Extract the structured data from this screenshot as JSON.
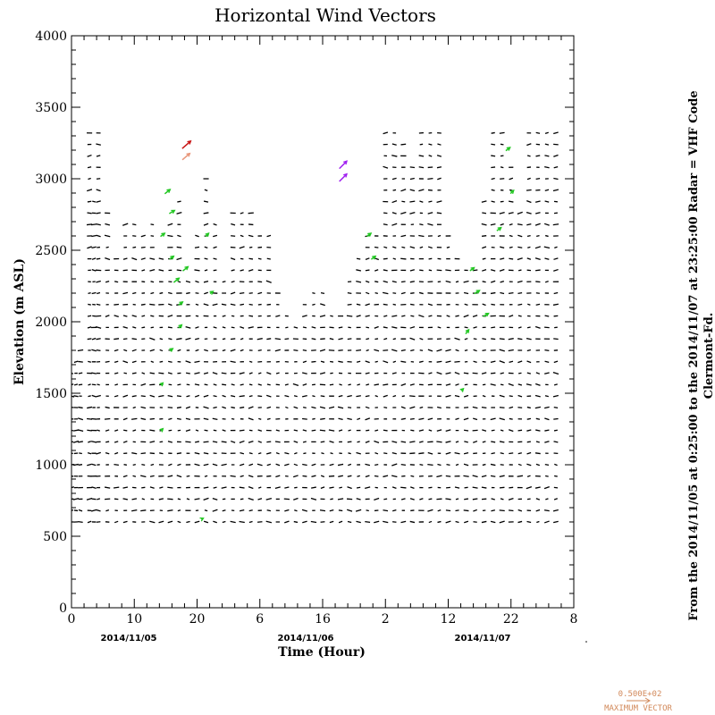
{
  "chart_data": {
    "type": "scatter",
    "subtype": "wind-vector field",
    "title": "Horizontal Wind Vectors",
    "xlabel": "Time (Hour)",
    "ylabel": "Elevation (m ASL)",
    "ylim": [
      0,
      4000
    ],
    "yticks": [
      "0",
      "500",
      "1000",
      "1500",
      "2000",
      "2500",
      "3000",
      "3500",
      "4000"
    ],
    "xticks": [
      "0",
      "10",
      "20",
      "6",
      "16",
      "2",
      "12",
      "22",
      "8"
    ],
    "date_labels": [
      "2014/11/05",
      "2014/11/06",
      "2014/11/07"
    ],
    "side_text_line1": "From the 2014/11/05 at  0:25:00 to the 2014/11/07 at 23:25:00 Radar = VHF Code",
    "side_text_line2": "Clermont-Fd.",
    "legend": {
      "value_label": "0.500E+02",
      "caption": "MAXIMUM VECTOR"
    },
    "colors": {
      "default_vector": "#000000",
      "green_vector": "#22c722",
      "purple_vector": "#a020f0",
      "red_vector": "#c81414",
      "salmon_vector": "#e8967a",
      "legend_color": "#d2895a"
    },
    "elevation_levels_m": [
      600,
      680,
      760,
      840,
      920,
      1000,
      1080,
      1160,
      1240,
      1320,
      1400,
      1480,
      1560,
      1640,
      1720,
      1800,
      1880,
      1960,
      2040,
      2120,
      2200,
      2280,
      2360,
      2440,
      2520,
      2600,
      2680,
      2760,
      2840,
      2920,
      3000,
      3080,
      3160,
      3240,
      3320
    ],
    "profiles": [
      {
        "t": 0,
        "top": 1700
      },
      {
        "t": 1,
        "top": 1750
      },
      {
        "t": 2,
        "top": 1800
      },
      {
        "t": 4,
        "top": 3340
      },
      {
        "t": 5,
        "top": 2900
      },
      {
        "t": 6,
        "top": 3340
      },
      {
        "t": 8,
        "top": 2800
      },
      {
        "t": 10,
        "top": 2500
      },
      {
        "t": 12,
        "top": 2700
      },
      {
        "t": 14,
        "top": 2700
      },
      {
        "t": 16,
        "top": 2600
      },
      {
        "t": 18,
        "top": 2700
      },
      {
        "t": 20,
        "top": 2500
      },
      {
        "t": 22,
        "top": 2750
      },
      {
        "t": 24,
        "top": 2850
      },
      {
        "t": 26,
        "top": 2300
      },
      {
        "t": 28,
        "top": 2600
      },
      {
        "t": 30,
        "top": 3000
      },
      {
        "t": 32,
        "top": 2700
      },
      {
        "t": 34,
        "top": 2300
      },
      {
        "t": 36,
        "top": 2800
      },
      {
        "t": 38,
        "top": 2800
      },
      {
        "t": 40,
        "top": 2800
      },
      {
        "t": 42,
        "top": 2600
      },
      {
        "t": 44,
        "top": 2600
      },
      {
        "t": 46,
        "top": 2200
      },
      {
        "t": 48,
        "top": 2100
      },
      {
        "t": 50,
        "top": 2000
      },
      {
        "t": 52,
        "top": 2150
      },
      {
        "t": 54,
        "top": 2200
      },
      {
        "t": 56,
        "top": 2200
      },
      {
        "t": 58,
        "top": 2050
      },
      {
        "t": 60,
        "top": 2100
      },
      {
        "t": 62,
        "top": 2300
      },
      {
        "t": 64,
        "top": 2500
      },
      {
        "t": 66,
        "top": 2600
      },
      {
        "t": 68,
        "top": 2600
      },
      {
        "t": 70,
        "top": 3340
      },
      {
        "t": 72,
        "top": 3340
      },
      {
        "t": 74,
        "top": 3300
      },
      {
        "t": 76,
        "top": 3100
      },
      {
        "t": 78,
        "top": 3340
      },
      {
        "t": 80,
        "top": 3340
      },
      {
        "t": 82,
        "top": 3340
      },
      {
        "t": 84,
        "top": 2600
      },
      {
        "t": 86,
        "top": 2500
      },
      {
        "t": 88,
        "top": 2400
      },
      {
        "t": 90,
        "top": 2400
      },
      {
        "t": 92,
        "top": 2900
      },
      {
        "t": 94,
        "top": 3340
      },
      {
        "t": 96,
        "top": 3340
      },
      {
        "t": 98,
        "top": 3100
      },
      {
        "t": 100,
        "top": 2800
      },
      {
        "t": 102,
        "top": 3340
      },
      {
        "t": 104,
        "top": 3340
      },
      {
        "t": 106,
        "top": 3340
      },
      {
        "t": 108,
        "top": 3340
      }
    ],
    "colored_vectors": [
      {
        "t": 20,
        "z": 2600,
        "u": 4,
        "v": 3,
        "color": "green"
      },
      {
        "t": 21,
        "z": 2900,
        "u": 5,
        "v": 4,
        "color": "green"
      },
      {
        "t": 22,
        "z": 2760,
        "u": 5,
        "v": 3,
        "color": "green"
      },
      {
        "t": 22,
        "z": 2440,
        "u": 4,
        "v": 3,
        "color": "green"
      },
      {
        "t": 23,
        "z": 2280,
        "u": 5,
        "v": 4,
        "color": "green"
      },
      {
        "t": 24,
        "z": 2120,
        "u": 4,
        "v": 3,
        "color": "green"
      },
      {
        "t": 24,
        "z": 1960,
        "u": 3,
        "v": 3,
        "color": "green"
      },
      {
        "t": 25,
        "z": 2360,
        "u": 5,
        "v": 4,
        "color": "green"
      },
      {
        "t": 22,
        "z": 1800,
        "u": 3,
        "v": 2,
        "color": "green"
      },
      {
        "t": 20,
        "z": 1560,
        "u": 2,
        "v": 2,
        "color": "green"
      },
      {
        "t": 20,
        "z": 1240,
        "u": 2,
        "v": 2,
        "color": "green"
      },
      {
        "t": 29,
        "z": 620,
        "u": 2,
        "v": 1,
        "color": "green"
      },
      {
        "t": 30,
        "z": 2600,
        "u": 3,
        "v": 3,
        "color": "green"
      },
      {
        "t": 31,
        "z": 2200,
        "u": 3,
        "v": 2,
        "color": "green"
      },
      {
        "t": 66,
        "z": 2600,
        "u": 4,
        "v": 3,
        "color": "green"
      },
      {
        "t": 67,
        "z": 2440,
        "u": 4,
        "v": 3,
        "color": "green"
      },
      {
        "t": 88,
        "z": 1920,
        "u": 3,
        "v": 4,
        "color": "green"
      },
      {
        "t": 89,
        "z": 2360,
        "u": 4,
        "v": 3,
        "color": "green"
      },
      {
        "t": 90,
        "z": 2200,
        "u": 5,
        "v": 3,
        "color": "green"
      },
      {
        "t": 92,
        "z": 2040,
        "u": 5,
        "v": 3,
        "color": "green"
      },
      {
        "t": 95,
        "z": 2640,
        "u": 4,
        "v": 3,
        "color": "green"
      },
      {
        "t": 97,
        "z": 3200,
        "u": 4,
        "v": 3,
        "color": "green"
      },
      {
        "t": 98,
        "z": 2900,
        "u": 3,
        "v": 3,
        "color": "green"
      },
      {
        "t": 87,
        "z": 1520,
        "u": 2,
        "v": 2,
        "color": "green"
      },
      {
        "t": 60,
        "z": 3080,
        "u": 7,
        "v": 7,
        "color": "purple"
      },
      {
        "t": 60,
        "z": 2990,
        "u": 7,
        "v": 7,
        "color": "purple"
      },
      {
        "t": 25,
        "z": 3220,
        "u": 8,
        "v": 7,
        "color": "red"
      },
      {
        "t": 25,
        "z": 3140,
        "u": 7,
        "v": 6,
        "color": "salmon"
      }
    ]
  }
}
